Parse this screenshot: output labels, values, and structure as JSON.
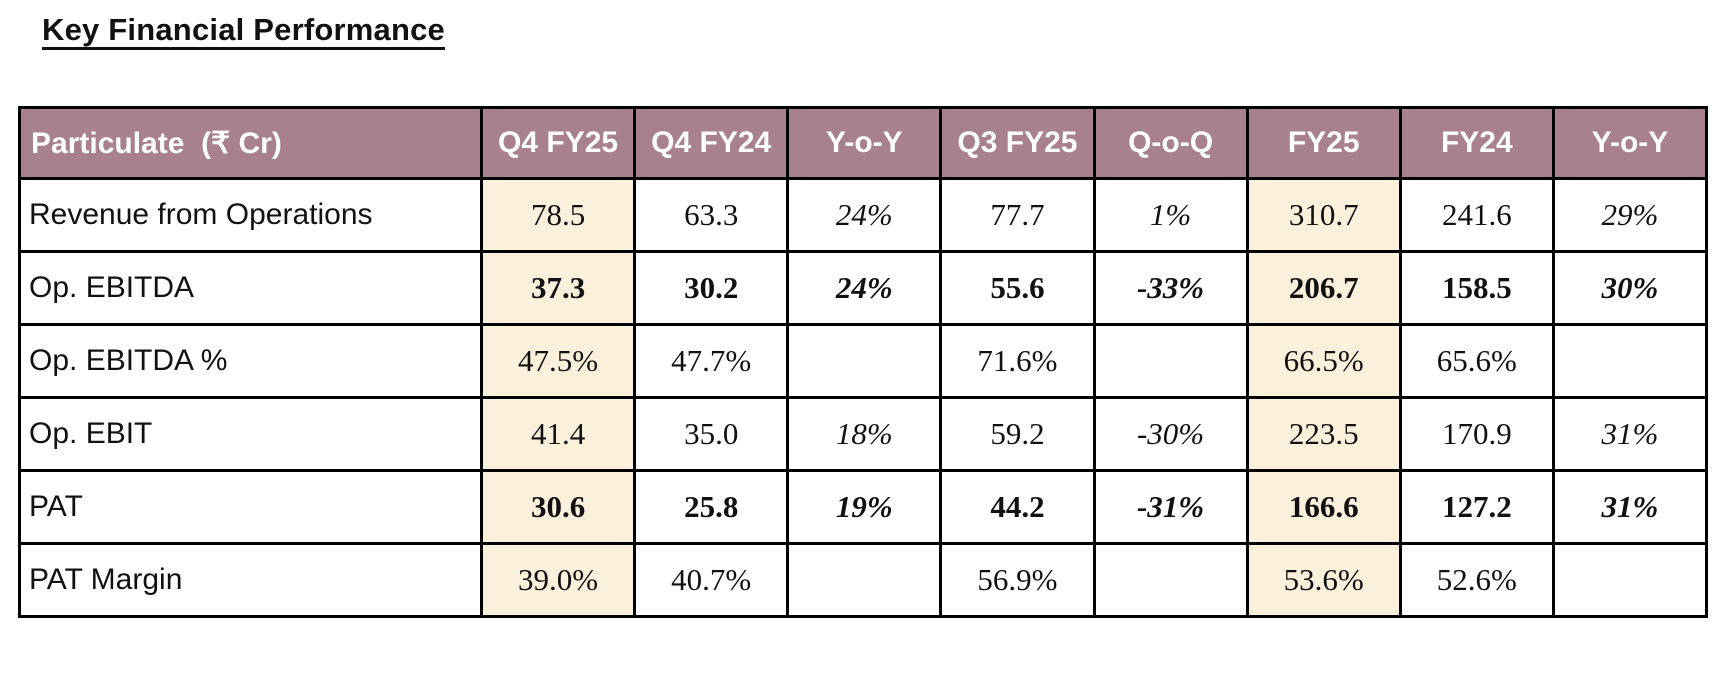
{
  "page": {
    "title": "Key Financial Performance"
  },
  "table": {
    "columns": [
      "Particulate  (₹ Cr)",
      "Q4 FY25",
      "Q4 FY24",
      "Y-o-Y",
      "Q3 FY25",
      "Q-o-Q",
      "FY25",
      "FY24",
      "Y-o-Y"
    ],
    "highlight_value_cols": [
      0,
      5
    ],
    "italic_value_cols": [
      2,
      4,
      7
    ],
    "rows": [
      {
        "label": "Revenue from Operations",
        "bold": false,
        "values": [
          "78.5",
          "63.3",
          "24%",
          "77.7",
          "1%",
          "310.7",
          "241.6",
          "29%"
        ]
      },
      {
        "label": "Op. EBITDA",
        "bold": true,
        "values": [
          "37.3",
          "30.2",
          "24%",
          "55.6",
          "-33%",
          "206.7",
          "158.5",
          "30%"
        ]
      },
      {
        "label": "Op. EBITDA %",
        "bold": false,
        "values": [
          "47.5%",
          "47.7%",
          "",
          "71.6%",
          "",
          "66.5%",
          "65.6%",
          ""
        ]
      },
      {
        "label": "Op. EBIT",
        "bold": false,
        "values": [
          "41.4",
          "35.0",
          "18%",
          "59.2",
          "-30%",
          "223.5",
          "170.9",
          "31%"
        ]
      },
      {
        "label": "PAT",
        "bold": true,
        "values": [
          "30.6",
          "25.8",
          "19%",
          "44.2",
          "-31%",
          "166.6",
          "127.2",
          "31%"
        ]
      },
      {
        "label": "PAT Margin",
        "bold": false,
        "values": [
          "39.0%",
          "40.7%",
          "",
          "56.9%",
          "",
          "53.6%",
          "52.6%",
          ""
        ]
      }
    ],
    "colors": {
      "header_bg": "#a8818f",
      "header_text": "#ffffff",
      "highlight_bg": "#faf0dc",
      "border": "#000000"
    }
  }
}
